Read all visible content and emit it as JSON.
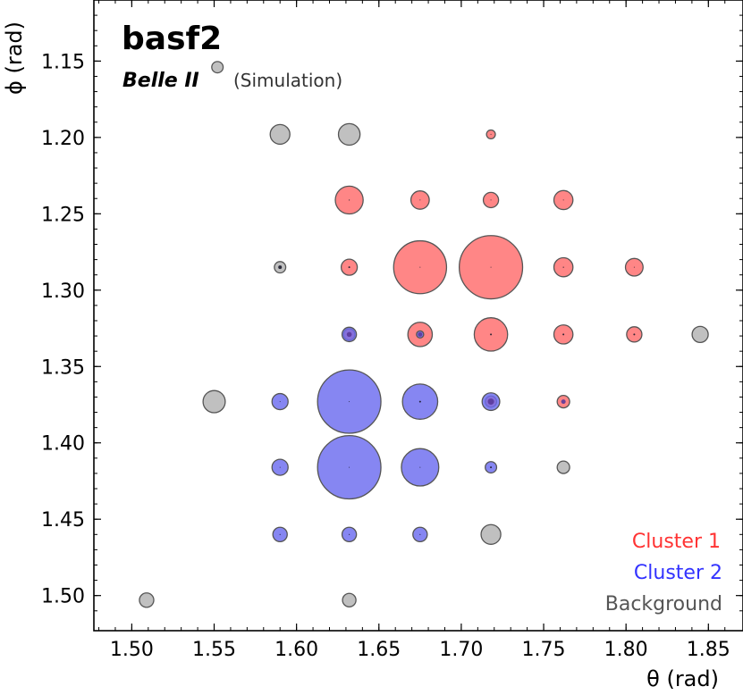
{
  "chart_data": {
    "type": "scatter",
    "title": "basf2",
    "subtitle": "Belle II",
    "subtitle_note": "(Simulation)",
    "xlabel": "θ (rad)",
    "ylabel": "ϕ (rad)",
    "xlim": [
      1.477,
      1.871
    ],
    "ylim": [
      1.523,
      1.11
    ],
    "y_inverted": true,
    "x_ticks": [
      "1.50",
      "1.55",
      "1.60",
      "1.65",
      "1.70",
      "1.75",
      "1.80",
      "1.85"
    ],
    "y_ticks": [
      "1.15",
      "1.20",
      "1.25",
      "1.30",
      "1.35",
      "1.40",
      "1.45",
      "1.50"
    ],
    "legend_position": "bottom-right",
    "colors": {
      "cluster1": "#ff6b6b",
      "cluster2": "#6b6bef",
      "background": "#bdbdbd",
      "edge": "#555555",
      "cluster1_text": "#ff3333",
      "cluster2_text": "#3333ff",
      "background_text": "#555555"
    },
    "series": [
      {
        "name": "Cluster 1",
        "key": "cluster1",
        "points": [
          {
            "theta": 1.718,
            "phi": 1.198,
            "energy": 0.3
          },
          {
            "theta": 1.632,
            "phi": 1.241,
            "energy": 3.0
          },
          {
            "theta": 1.675,
            "phi": 1.241,
            "energy": 1.3
          },
          {
            "theta": 1.718,
            "phi": 1.241,
            "energy": 0.9
          },
          {
            "theta": 1.762,
            "phi": 1.241,
            "energy": 1.4
          },
          {
            "theta": 1.632,
            "phi": 1.285,
            "energy": 1.0
          },
          {
            "theta": 1.675,
            "phi": 1.285,
            "energy": 10.8
          },
          {
            "theta": 1.718,
            "phi": 1.285,
            "energy": 15.5
          },
          {
            "theta": 1.762,
            "phi": 1.285,
            "energy": 1.4
          },
          {
            "theta": 1.805,
            "phi": 1.285,
            "energy": 1.2
          },
          {
            "theta": 1.632,
            "phi": 1.329,
            "energy": 0.5
          },
          {
            "theta": 1.675,
            "phi": 1.329,
            "energy": 2.3
          },
          {
            "theta": 1.718,
            "phi": 1.329,
            "energy": 4.3
          },
          {
            "theta": 1.762,
            "phi": 1.329,
            "energy": 1.4
          },
          {
            "theta": 1.805,
            "phi": 1.329,
            "energy": 0.9
          },
          {
            "theta": 1.718,
            "phi": 1.373,
            "energy": 0.5
          },
          {
            "theta": 1.762,
            "phi": 1.373,
            "energy": 0.6
          }
        ]
      },
      {
        "name": "Cluster 2",
        "key": "cluster2",
        "points": [
          {
            "theta": 1.632,
            "phi": 1.329,
            "energy": 0.8
          },
          {
            "theta": 1.675,
            "phi": 1.329,
            "energy": 0.2
          },
          {
            "theta": 1.59,
            "phi": 1.373,
            "energy": 1.0
          },
          {
            "theta": 1.632,
            "phi": 1.373,
            "energy": 15.5
          },
          {
            "theta": 1.675,
            "phi": 1.373,
            "energy": 4.8
          },
          {
            "theta": 1.718,
            "phi": 1.373,
            "energy": 1.2
          },
          {
            "theta": 1.59,
            "phi": 1.416,
            "energy": 1.0
          },
          {
            "theta": 1.632,
            "phi": 1.416,
            "energy": 15.5
          },
          {
            "theta": 1.675,
            "phi": 1.416,
            "energy": 5.4
          },
          {
            "theta": 1.718,
            "phi": 1.416,
            "energy": 0.5
          },
          {
            "theta": 1.59,
            "phi": 1.46,
            "energy": 0.8
          },
          {
            "theta": 1.632,
            "phi": 1.46,
            "energy": 0.8
          },
          {
            "theta": 1.675,
            "phi": 1.46,
            "energy": 0.8
          }
        ]
      },
      {
        "name": "Background",
        "key": "background",
        "points": [
          {
            "theta": 1.552,
            "phi": 1.154,
            "energy": 0.5
          },
          {
            "theta": 1.59,
            "phi": 1.198,
            "energy": 1.5
          },
          {
            "theta": 1.632,
            "phi": 1.198,
            "energy": 1.8
          },
          {
            "theta": 1.59,
            "phi": 1.285,
            "energy": 0.5
          },
          {
            "theta": 1.845,
            "phi": 1.329,
            "energy": 1.0
          },
          {
            "theta": 1.55,
            "phi": 1.373,
            "energy": 1.9
          },
          {
            "theta": 1.762,
            "phi": 1.416,
            "energy": 0.6
          },
          {
            "theta": 1.718,
            "phi": 1.46,
            "energy": 1.5
          },
          {
            "theta": 1.509,
            "phi": 1.503,
            "energy": 0.8
          },
          {
            "theta": 1.632,
            "phi": 1.503,
            "energy": 0.7
          }
        ]
      }
    ],
    "point_marks": [
      {
        "theta": 1.718,
        "phi": 1.198,
        "size": 0.5
      },
      {
        "theta": 1.632,
        "phi": 1.241,
        "size": 0.6
      },
      {
        "theta": 1.675,
        "phi": 1.241,
        "size": 0.5
      },
      {
        "theta": 1.718,
        "phi": 1.241,
        "size": 0.5
      },
      {
        "theta": 1.762,
        "phi": 1.241,
        "size": 0.5
      },
      {
        "theta": 1.59,
        "phi": 1.285,
        "size": 2.0
      },
      {
        "theta": 1.632,
        "phi": 1.285,
        "size": 1.0
      },
      {
        "theta": 1.675,
        "phi": 1.285,
        "size": 0.5
      },
      {
        "theta": 1.718,
        "phi": 1.285,
        "size": 0.5
      },
      {
        "theta": 1.762,
        "phi": 1.285,
        "size": 0.6
      },
      {
        "theta": 1.805,
        "phi": 1.285,
        "size": 0.5
      },
      {
        "theta": 1.632,
        "phi": 1.329,
        "size": 2.8
      },
      {
        "theta": 1.675,
        "phi": 1.329,
        "size": 2.4
      },
      {
        "theta": 1.718,
        "phi": 1.329,
        "size": 1.0
      },
      {
        "theta": 1.762,
        "phi": 1.329,
        "size": 1.0
      },
      {
        "theta": 1.805,
        "phi": 1.329,
        "size": 1.0
      },
      {
        "theta": 1.59,
        "phi": 1.373,
        "size": 0.5
      },
      {
        "theta": 1.632,
        "phi": 1.373,
        "size": 0.5
      },
      {
        "theta": 1.675,
        "phi": 1.373,
        "size": 1.0
      },
      {
        "theta": 1.718,
        "phi": 1.373,
        "size": 3.5
      },
      {
        "theta": 1.762,
        "phi": 1.373,
        "size": 2.5
      },
      {
        "theta": 1.59,
        "phi": 1.416,
        "size": 0.5
      },
      {
        "theta": 1.632,
        "phi": 1.416,
        "size": 0.5
      },
      {
        "theta": 1.675,
        "phi": 1.416,
        "size": 0.5
      },
      {
        "theta": 1.718,
        "phi": 1.416,
        "size": 1.0
      },
      {
        "theta": 1.59,
        "phi": 1.46,
        "size": 0.6
      },
      {
        "theta": 1.632,
        "phi": 1.46,
        "size": 0.6
      },
      {
        "theta": 1.675,
        "phi": 1.46,
        "size": 0.6
      }
    ]
  }
}
